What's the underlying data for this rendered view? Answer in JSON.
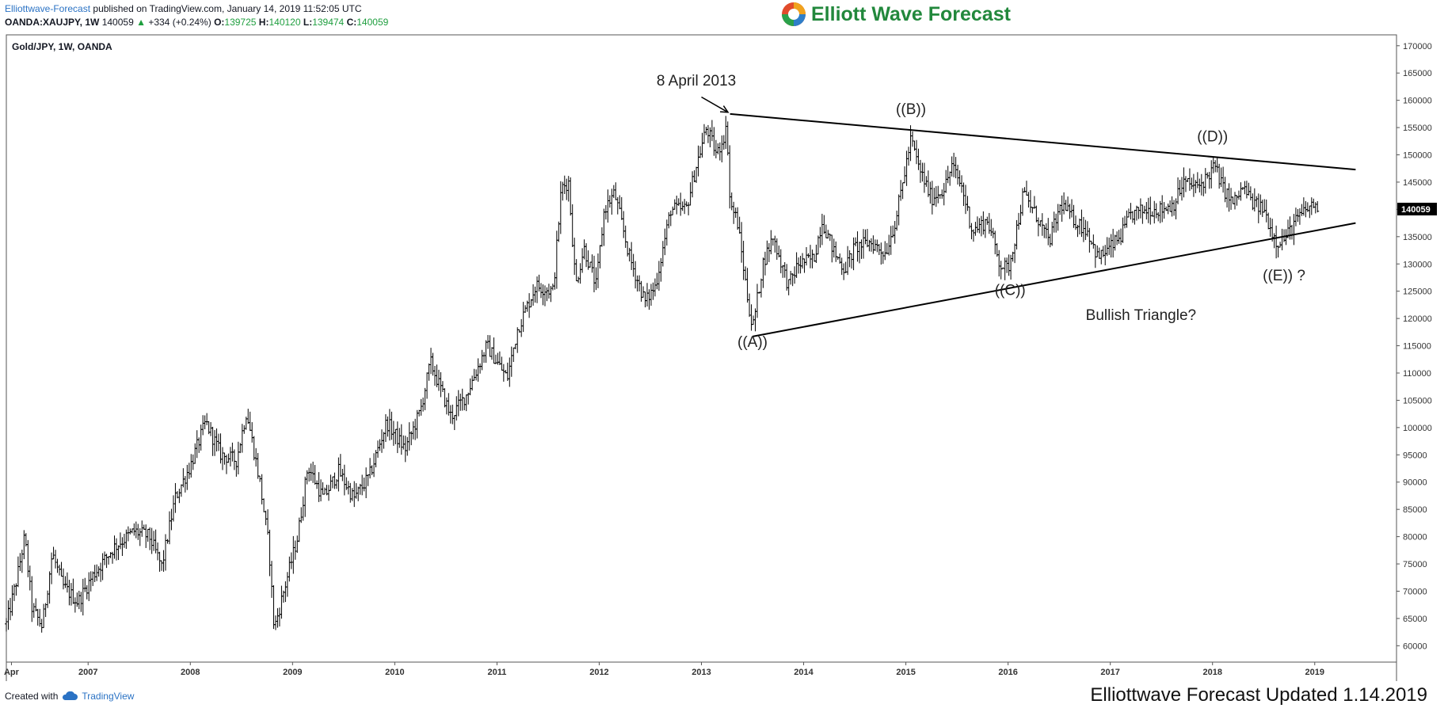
{
  "header": {
    "publisher": "Elliottwave-Forecast",
    "published_text": "published on TradingView.com, January 14, 2019 11:52:05 UTC",
    "symbol": "OANDA:XAUJPY, 1W",
    "last": "140059",
    "change": "+334 (+0.24%)",
    "o_label": "O:",
    "o_value": "139725",
    "h_label": "H:",
    "h_value": "140120",
    "l_label": "L:",
    "l_value": "139474",
    "c_label": "C:",
    "c_value": "140059"
  },
  "logo": {
    "text": "Elliott Wave Forecast"
  },
  "footer": {
    "created_with": "Created with",
    "tradingview": "TradingView",
    "updated": "Elliottwave Forecast  Updated 1.14.2019"
  },
  "colors": {
    "bars": "#000000",
    "price_tag_bg": "#000000",
    "logo_green": "#22883c",
    "link_blue": "#2a72c4",
    "up_green": "#1e9e3e"
  },
  "chart_data": {
    "type": "ohlc",
    "title": "Gold/JPY, 1W, OANDA",
    "x_axis": {
      "ticks": [
        "Apr",
        "2007",
        "2008",
        "2009",
        "2010",
        "2011",
        "2012",
        "2013",
        "2014",
        "2015",
        "2016",
        "2017",
        "2018",
        "2019"
      ],
      "range": [
        2006.2,
        2019.8
      ]
    },
    "y_axis": {
      "range": [
        57000,
        172000
      ],
      "step": 5000,
      "position": "right",
      "last_price": 140059
    },
    "price_path": [
      [
        2006.2,
        64000
      ],
      [
        2006.3,
        72000
      ],
      [
        2006.38,
        80000
      ],
      [
        2006.45,
        67000
      ],
      [
        2006.55,
        63500
      ],
      [
        2006.65,
        77000
      ],
      [
        2006.75,
        71000
      ],
      [
        2006.9,
        68000
      ],
      [
        2007.05,
        73000
      ],
      [
        2007.25,
        78000
      ],
      [
        2007.45,
        81000
      ],
      [
        2007.6,
        80000
      ],
      [
        2007.72,
        74500
      ],
      [
        2007.85,
        87000
      ],
      [
        2008.0,
        93000
      ],
      [
        2008.15,
        101000
      ],
      [
        2008.3,
        95000
      ],
      [
        2008.45,
        94000
      ],
      [
        2008.55,
        103000
      ],
      [
        2008.68,
        90000
      ],
      [
        2008.77,
        78000
      ],
      [
        2008.82,
        63000
      ],
      [
        2008.9,
        69000
      ],
      [
        2009.05,
        80000
      ],
      [
        2009.15,
        93000
      ],
      [
        2009.3,
        87000
      ],
      [
        2009.45,
        92000
      ],
      [
        2009.6,
        87000
      ],
      [
        2009.75,
        91000
      ],
      [
        2009.92,
        101000
      ],
      [
        2010.1,
        96000
      ],
      [
        2010.25,
        103000
      ],
      [
        2010.35,
        112000
      ],
      [
        2010.55,
        102000
      ],
      [
        2010.7,
        106000
      ],
      [
        2010.9,
        115000
      ],
      [
        2011.1,
        109000
      ],
      [
        2011.2,
        118000
      ],
      [
        2011.38,
        126000
      ],
      [
        2011.55,
        125000
      ],
      [
        2011.63,
        144000
      ],
      [
        2011.7,
        145000
      ],
      [
        2011.77,
        126000
      ],
      [
        2011.85,
        133000
      ],
      [
        2011.97,
        126000
      ],
      [
        2012.05,
        140000
      ],
      [
        2012.15,
        143000
      ],
      [
        2012.3,
        131000
      ],
      [
        2012.45,
        123000
      ],
      [
        2012.55,
        126000
      ],
      [
        2012.7,
        140000
      ],
      [
        2012.85,
        140000
      ],
      [
        2012.95,
        148000
      ],
      [
        2013.05,
        155000
      ],
      [
        2013.15,
        150000
      ],
      [
        2013.25,
        155000
      ],
      [
        2013.28,
        141000
      ],
      [
        2013.35,
        138000
      ],
      [
        2013.45,
        124000
      ],
      [
        2013.5,
        118000
      ],
      [
        2013.6,
        130000
      ],
      [
        2013.7,
        135000
      ],
      [
        2013.85,
        126000
      ],
      [
        2013.95,
        130000
      ],
      [
        2014.1,
        131000
      ],
      [
        2014.18,
        138000
      ],
      [
        2014.3,
        132000
      ],
      [
        2014.4,
        129000
      ],
      [
        2014.5,
        133000
      ],
      [
        2014.65,
        134000
      ],
      [
        2014.8,
        132000
      ],
      [
        2014.9,
        138000
      ],
      [
        2015.0,
        148000
      ],
      [
        2015.05,
        153000
      ],
      [
        2015.12,
        148000
      ],
      [
        2015.25,
        142000
      ],
      [
        2015.38,
        144000
      ],
      [
        2015.45,
        148000
      ],
      [
        2015.55,
        144000
      ],
      [
        2015.65,
        136000
      ],
      [
        2015.8,
        138000
      ],
      [
        2015.92,
        130000
      ],
      [
        2016.0,
        129000
      ],
      [
        2016.07,
        135000
      ],
      [
        2016.15,
        143000
      ],
      [
        2016.3,
        138000
      ],
      [
        2016.4,
        134000
      ],
      [
        2016.52,
        141000
      ],
      [
        2016.65,
        138000
      ],
      [
        2016.78,
        136000
      ],
      [
        2016.88,
        131000
      ],
      [
        2017.0,
        133000
      ],
      [
        2017.1,
        135000
      ],
      [
        2017.2,
        139000
      ],
      [
        2017.35,
        140000
      ],
      [
        2017.5,
        140000
      ],
      [
        2017.62,
        141000
      ],
      [
        2017.72,
        145000
      ],
      [
        2017.85,
        144000
      ],
      [
        2017.95,
        146000
      ],
      [
        2018.02,
        148000
      ],
      [
        2018.1,
        144000
      ],
      [
        2018.2,
        141000
      ],
      [
        2018.3,
        144000
      ],
      [
        2018.4,
        141000
      ],
      [
        2018.5,
        140000
      ],
      [
        2018.58,
        136000
      ],
      [
        2018.63,
        134000
      ],
      [
        2018.72,
        135000
      ],
      [
        2018.82,
        138000
      ],
      [
        2018.92,
        140000
      ],
      [
        2019.0,
        141000
      ],
      [
        2019.04,
        140059
      ]
    ],
    "annotations": [
      {
        "text": "8 April 2013"
      },
      {
        "text": "((A))"
      },
      {
        "text": "((B))"
      },
      {
        "text": "((C))"
      },
      {
        "text": "((D))"
      },
      {
        "text": "((E)) ?"
      },
      {
        "text": "Bullish Triangle?"
      }
    ],
    "trendlines": [
      {
        "name": "upper",
        "from": [
          2013.28,
          157500
        ],
        "to": [
          2019.4,
          147300
        ]
      },
      {
        "name": "lower",
        "from": [
          2013.5,
          116700
        ],
        "to": [
          2019.4,
          137500
        ]
      }
    ]
  }
}
